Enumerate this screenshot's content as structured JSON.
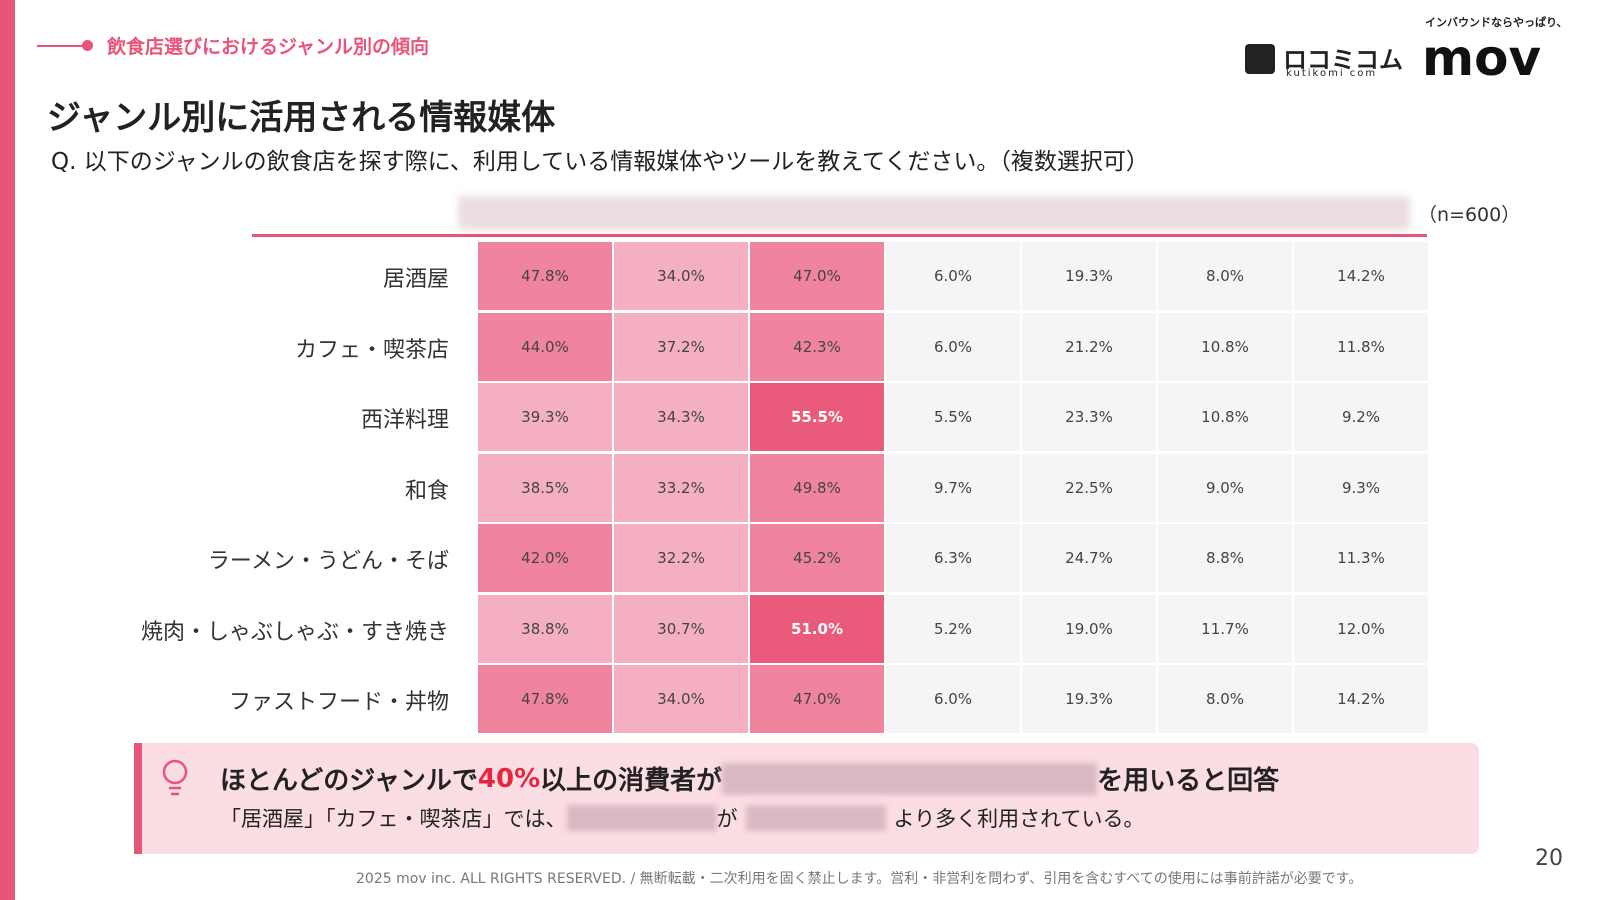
{
  "header": {
    "section": "飲食店選びにおけるジャンル別の傾向",
    "title": "ジャンル別に活用される情報媒体",
    "question": "Q. 以下のジャンルの飲食店を探す際に、利用している情報媒体やツールを教えてください。（複数選択可）",
    "logo_kutikomi": "ロコミコム",
    "logo_kutikomi_sub": "kutikomi com",
    "logo_mov_tagline": "インバウンドならやっぱり、",
    "logo_mov": "mov"
  },
  "table": {
    "note": "（n=600）",
    "row_labels": [
      "居酒屋",
      "カフェ・喫茶店",
      "西洋料理",
      "和食",
      "ラーメン・うどん・そば",
      "焼肉・しゃぶしゃぶ・すき焼き",
      "ファストフード・丼物"
    ],
    "rows": [
      [
        "47.8%",
        "34.0%",
        "47.0%",
        "6.0%",
        "19.3%",
        "8.0%",
        "14.2%"
      ],
      [
        "44.0%",
        "37.2%",
        "42.3%",
        "6.0%",
        "21.2%",
        "10.8%",
        "11.8%"
      ],
      [
        "39.3%",
        "34.3%",
        "55.5%",
        "5.5%",
        "23.3%",
        "10.8%",
        "9.2%"
      ],
      [
        "38.5%",
        "33.2%",
        "49.8%",
        "9.7%",
        "22.5%",
        "9.0%",
        "9.3%"
      ],
      [
        "42.0%",
        "32.2%",
        "45.2%",
        "6.3%",
        "24.7%",
        "8.8%",
        "11.3%"
      ],
      [
        "38.8%",
        "30.7%",
        "51.0%",
        "5.2%",
        "19.0%",
        "11.7%",
        "12.0%"
      ],
      [
        "47.8%",
        "34.0%",
        "47.0%",
        "6.0%",
        "19.3%",
        "8.0%",
        "14.2%"
      ]
    ]
  },
  "callout": {
    "line1": [
      "ほとんどのジャンルで",
      "40%",
      "以上の消費者が",
      "を用いると回答"
    ],
    "line2": [
      "「居酒屋」「カフェ・喫茶店」では、",
      "が",
      "より多く利用されている。"
    ]
  },
  "footer": {
    "copyright": "2025 mov inc. ALL RIGHTS RESERVED. / 無断転載・二次利用を固く禁止します。営利・非営利を問わず、引用を含むすべての使用には事前許諾が必要です。",
    "page": "20"
  }
}
